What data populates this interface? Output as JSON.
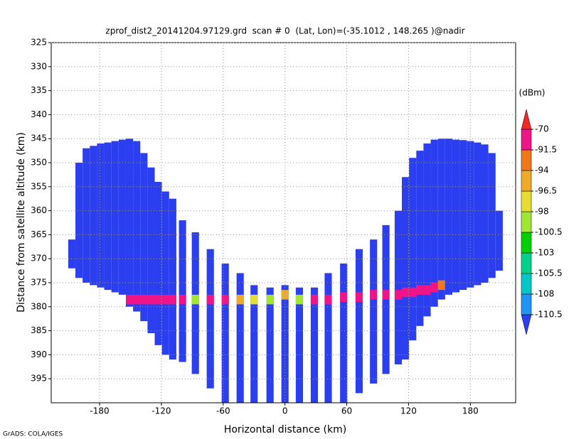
{
  "chart_data": {
    "type": "profile",
    "title": "zprof_dist2_20141204.97129.grd  scan # 0  (Lat, Lon)=(-35.1012 , 148.265 )@nadir",
    "x_label": "Horizontal distance (km)",
    "y_label": "Distance from satellite altitude (km)",
    "footer": "GrADS: COLA/IGES",
    "colorbar_title": "(dBm)",
    "xlim": [
      -227,
      224
    ],
    "ylim": [
      325,
      400
    ],
    "y_inverted": true,
    "xticks": [
      -180,
      -120,
      -60,
      0,
      60,
      120,
      180
    ],
    "yticks": [
      325,
      330,
      335,
      340,
      345,
      350,
      355,
      360,
      365,
      370,
      375,
      380,
      385,
      390,
      395
    ],
    "grid": true,
    "levels": [
      -110.5,
      -108,
      -105.5,
      -103,
      -100.5,
      -98,
      -96.5,
      -94,
      -91.5,
      -70
    ],
    "colors": [
      "#2b3ff0",
      "#1e96f5",
      "#00c8c8",
      "#00d28c",
      "#00d200",
      "#a0e632",
      "#e6dc32",
      "#f0aa28",
      "#f07818",
      "#f01488",
      "#f02828"
    ],
    "x": [
      -207,
      -200,
      -193,
      -186,
      -179,
      -172,
      -165,
      -158,
      -151,
      -144,
      -137,
      -130,
      -123,
      -116,
      -109,
      -99.5,
      -87,
      -72.5,
      -58,
      -43.5,
      -30,
      -14.5,
      0,
      14,
      28.5,
      42,
      57,
      72,
      86,
      98,
      110,
      117,
      124,
      131,
      138,
      145,
      152,
      159,
      166,
      173,
      180,
      187,
      194,
      201,
      208
    ],
    "top": [
      366,
      350,
      347,
      346.5,
      346,
      345.8,
      345.5,
      345.2,
      345,
      345.5,
      348,
      351,
      354,
      356,
      357.5,
      362,
      364.5,
      368,
      371,
      373,
      375.5,
      376,
      375.5,
      376,
      376,
      373,
      371,
      368,
      366,
      363,
      360,
      353,
      349,
      347.5,
      346,
      345.2,
      345,
      345,
      345.2,
      345.3,
      345.5,
      345.8,
      346.2,
      348,
      360
    ],
    "bottom": [
      372,
      374,
      375,
      375.5,
      376,
      376.5,
      377,
      377.5,
      380,
      381,
      383,
      385.5,
      388,
      390,
      391,
      391.5,
      394,
      397,
      400,
      400,
      400,
      400,
      400,
      400,
      400,
      400,
      400,
      398,
      396,
      394,
      392,
      391,
      387,
      384,
      382,
      380,
      378.5,
      377.5,
      377,
      376.5,
      376,
      375.5,
      375,
      374,
      372.5
    ],
    "value": [
      -112,
      -112,
      -112,
      -112,
      -112,
      -112,
      -112,
      -112,
      -112,
      -112,
      -112,
      -112,
      -112,
      -112,
      -112,
      -112,
      -112,
      -112,
      -112,
      -112,
      -112,
      -112,
      -112,
      -112,
      -112,
      -112,
      -112,
      -112,
      -112,
      -112,
      -112,
      -112,
      -112,
      -112,
      -112,
      -112,
      -112,
      -112,
      -112,
      -112,
      -112,
      -112,
      -112,
      -112,
      -112
    ],
    "peak_alt": [
      null,
      null,
      null,
      null,
      null,
      null,
      null,
      null,
      378.5,
      378.5,
      378.5,
      378.5,
      378.5,
      378.5,
      378.5,
      378.5,
      378.5,
      378.5,
      378.5,
      378.5,
      378.5,
      378.5,
      377.5,
      378.5,
      378.5,
      378.5,
      378,
      378,
      377.5,
      377.5,
      377.5,
      377,
      377,
      376.5,
      376.5,
      376,
      375.5,
      null,
      null,
      null,
      null,
      null,
      null,
      null,
      null
    ],
    "peak_value": [
      null,
      null,
      null,
      null,
      null,
      null,
      null,
      null,
      -80,
      -80,
      -80,
      -80,
      -80,
      -80,
      -80,
      -80,
      -99,
      -80,
      -80,
      -95,
      -97,
      -100,
      -95,
      -99,
      -80,
      -80,
      -80,
      -80,
      -80,
      -80,
      -80,
      -80,
      -80,
      -80,
      -80,
      -80,
      -92,
      null,
      null,
      null,
      null,
      null,
      null,
      null,
      null
    ]
  }
}
